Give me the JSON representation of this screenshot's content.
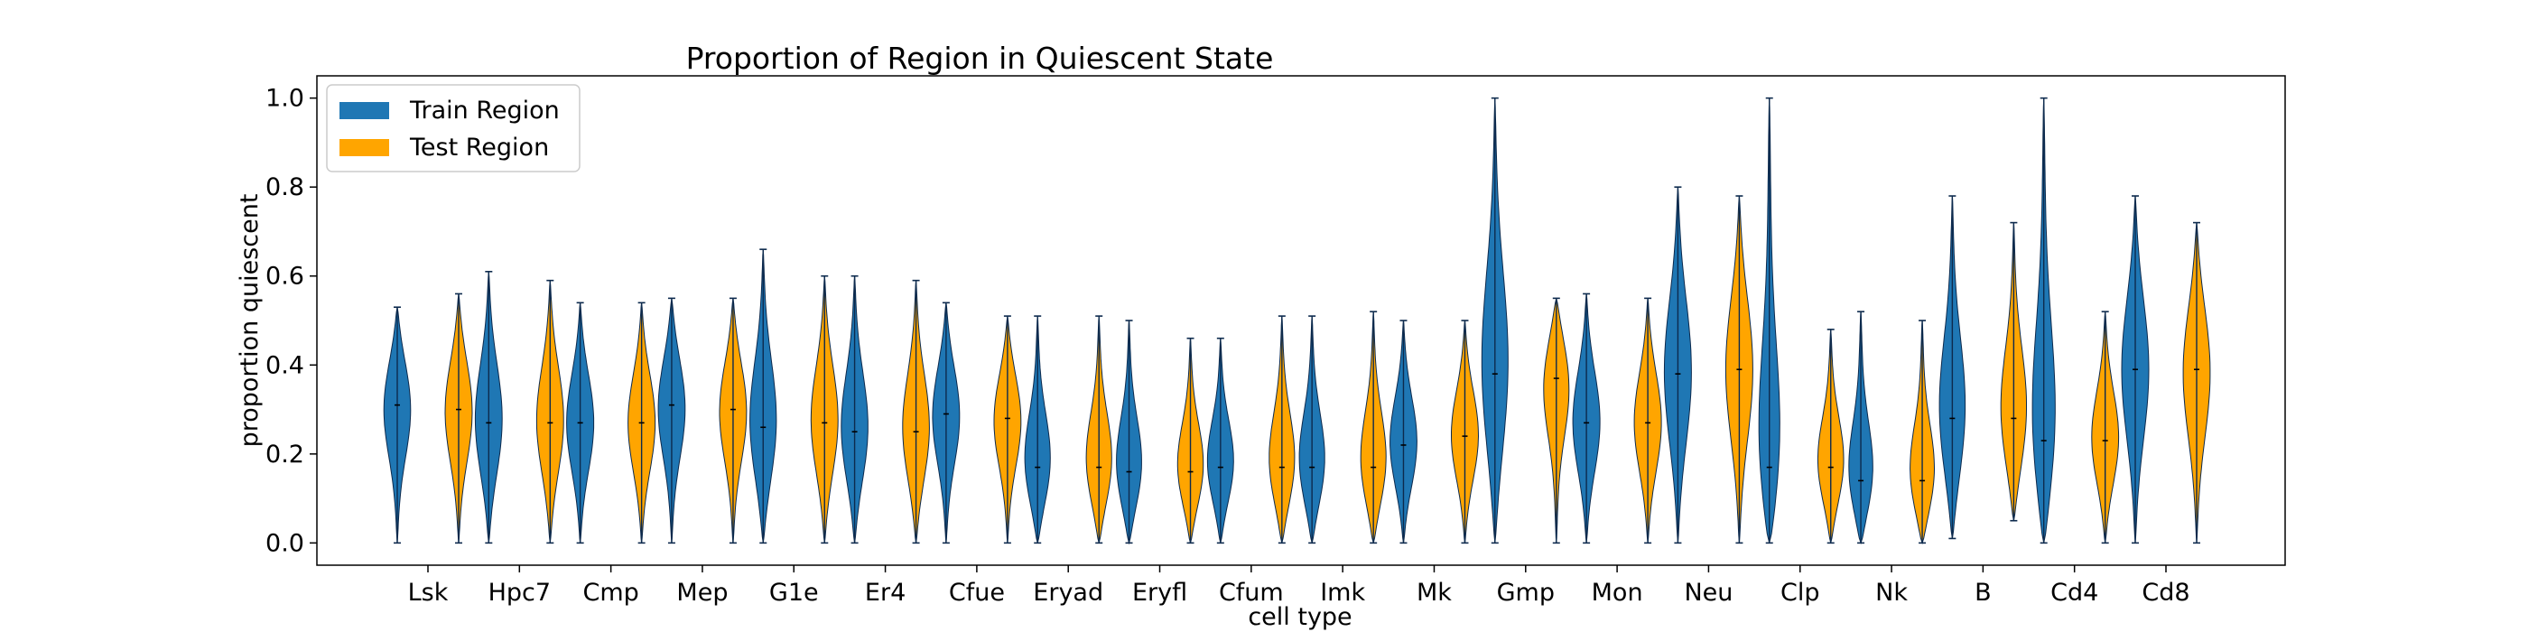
{
  "chart_data": {
    "type": "violin",
    "title": "Proportion of Region in Quiescent State",
    "xlabel": "cell type",
    "ylabel": "proportion quiescent",
    "ylim": [
      -0.05,
      1.05
    ],
    "yticks": [
      0.0,
      0.2,
      0.4,
      0.6,
      0.8,
      1.0
    ],
    "ytick_labels": [
      "0.0",
      "0.2",
      "0.4",
      "0.6",
      "0.8",
      "1.0"
    ],
    "legend": {
      "placement": "top-left",
      "entries": [
        {
          "name": "Train Region",
          "color": "#1f77b4"
        },
        {
          "name": "Test Region",
          "color": "#ffa500"
        }
      ]
    },
    "colors": {
      "train": "#1f77b4",
      "test": "#ffa500",
      "edge": "#0d2a4d"
    },
    "categories": [
      "Lsk",
      "Hpc7",
      "Cmp",
      "Mep",
      "G1e",
      "Er4",
      "Cfue",
      "Eryad",
      "Eryfl",
      "Cfum",
      "Imk",
      "Mk",
      "Gmp",
      "Mon",
      "Neu",
      "Clp",
      "Nk",
      "B",
      "Cd4",
      "Cd8"
    ],
    "series": [
      {
        "name": "Train Region",
        "min": [
          0.0,
          0.0,
          0.0,
          0.0,
          0.0,
          0.0,
          0.0,
          0.0,
          0.0,
          0.0,
          0.0,
          0.0,
          0.0,
          0.0,
          0.0,
          0.0,
          0.0,
          0.01,
          0.0,
          0.0
        ],
        "max": [
          0.53,
          0.61,
          0.54,
          0.55,
          0.66,
          0.6,
          0.54,
          0.51,
          0.5,
          0.46,
          0.51,
          0.5,
          1.0,
          0.56,
          0.8,
          1.0,
          0.52,
          0.78,
          1.0,
          0.78
        ],
        "median": [
          0.31,
          0.27,
          0.27,
          0.31,
          0.26,
          0.25,
          0.29,
          0.17,
          0.16,
          0.17,
          0.17,
          0.22,
          0.38,
          0.27,
          0.38,
          0.17,
          0.14,
          0.28,
          0.23,
          0.39
        ]
      },
      {
        "name": "Test Region",
        "min": [
          0.0,
          0.0,
          0.0,
          0.0,
          0.0,
          0.0,
          0.0,
          0.0,
          0.0,
          0.0,
          0.0,
          0.0,
          0.0,
          0.0,
          0.0,
          0.0,
          0.0,
          0.05,
          0.0,
          0.0
        ],
        "max": [
          0.56,
          0.59,
          0.54,
          0.55,
          0.6,
          0.59,
          0.51,
          0.51,
          0.46,
          0.51,
          0.52,
          0.5,
          0.55,
          0.55,
          0.78,
          0.48,
          0.5,
          0.72,
          0.52,
          0.72
        ],
        "median": [
          0.3,
          0.27,
          0.27,
          0.3,
          0.27,
          0.25,
          0.28,
          0.17,
          0.16,
          0.17,
          0.17,
          0.24,
          0.37,
          0.27,
          0.39,
          0.17,
          0.14,
          0.28,
          0.23,
          0.39
        ]
      }
    ]
  }
}
